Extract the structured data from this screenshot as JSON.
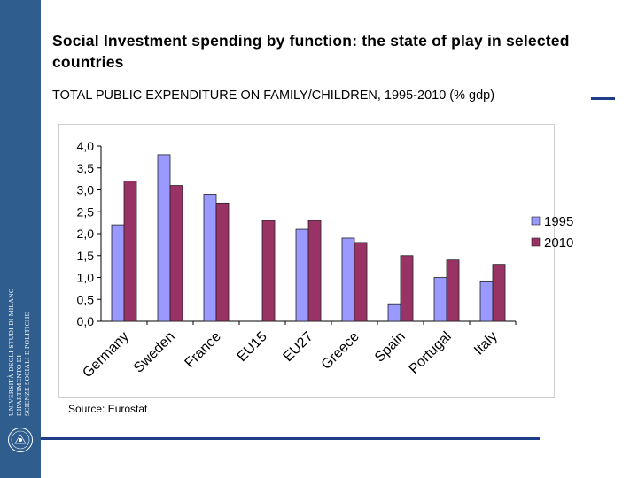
{
  "sidebar": {
    "university_line1": "UNIVERSITÀ DEGLI STUDI DI MILANO",
    "department_line1": "DIPARTIMENTO DI",
    "department_line2": "SCIENZE SOCIALI E POLITICHE",
    "seal_icon": "university-seal-icon"
  },
  "slide": {
    "title": "Social Investment spending by function: the state of play in selected countries",
    "subtitle": "TOTAL PUBLIC EXPENDITURE ON FAMILY/CHILDREN, 1995-2010 (% gdp)",
    "source": "Source: Eurostat"
  },
  "colors": {
    "accent": "#1f3c88",
    "sidebar": "#2e5d8e"
  },
  "chart_data": {
    "type": "bar",
    "title": "TOTAL PUBLIC EXPENDITURE ON FAMILY/CHILDREN, 1995-2010 (% gdp)",
    "categories": [
      "Germany",
      "Sweden",
      "France",
      "EU15",
      "EU27",
      "Greece",
      "Spain",
      "Portugal",
      "Italy"
    ],
    "series": [
      {
        "name": "1995",
        "color": "#9999ff",
        "values": [
          2.2,
          3.8,
          2.9,
          null,
          2.1,
          1.9,
          0.4,
          1.0,
          0.9
        ]
      },
      {
        "name": "2010",
        "color": "#993366",
        "values": [
          3.2,
          3.1,
          2.7,
          2.3,
          2.3,
          1.8,
          1.5,
          1.4,
          1.3
        ]
      }
    ],
    "ylim": [
      0,
      4
    ],
    "yticks": [
      "0,0",
      "0,5",
      "1,0",
      "1,5",
      "2,0",
      "2,5",
      "3,0",
      "3,5",
      "4,0"
    ],
    "ytick_values": [
      0,
      0.5,
      1,
      1.5,
      2,
      2.5,
      3,
      3.5,
      4
    ],
    "xlabel": "",
    "ylabel": "",
    "grid": false,
    "legend": "right"
  }
}
